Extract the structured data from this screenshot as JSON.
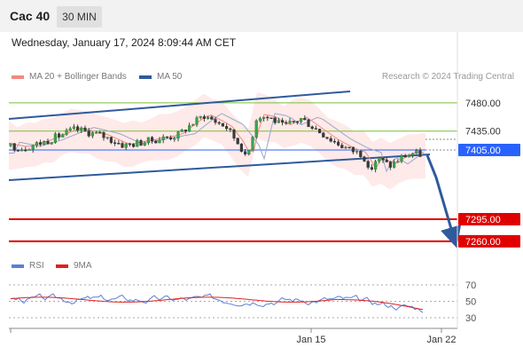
{
  "header": {
    "instrument": "Cac 40",
    "timeframe": "30 MIN"
  },
  "subtitle": "Wednesday, January 17, 2024 8:09:44 AM CET",
  "legend": {
    "bollinger": {
      "label": "MA 20 + Bollinger Bands",
      "color": "#f08a82"
    },
    "ma50": {
      "label": "MA 50",
      "color": "#2f5a9c"
    },
    "credit": "Research © 2024 Trading Central"
  },
  "rsi_legend": {
    "rsi": {
      "label": "RSI",
      "color": "#5b7fd6"
    },
    "ma9": {
      "label": "9MA",
      "color": "#e02020"
    }
  },
  "chart_data": {
    "type": "candlestick",
    "price_axis": {
      "ticks": [
        7480,
        7435,
        7405,
        7295,
        7260
      ],
      "labels": [
        "7480.00",
        "7435.00",
        "7405.00",
        "7295.00",
        "7260.00"
      ]
    },
    "current_price": {
      "value": 7405,
      "label": "7405.00",
      "color": "#2962ff"
    },
    "resistance_levels": [
      {
        "value": 7480,
        "label": "7480.00",
        "color": "#7cbd3a"
      },
      {
        "value": 7435,
        "label": "7435.00",
        "color": "#7cbd3a"
      }
    ],
    "support_levels": [
      {
        "value": 7295,
        "label": "7295.00",
        "color": "#e00000"
      },
      {
        "value": 7260,
        "label": "7260.00",
        "color": "#e00000"
      }
    ],
    "x_labels": [
      "Jan 15",
      "Jan 22"
    ],
    "forecast": {
      "from": 7405,
      "to": 7260,
      "direction": "down"
    },
    "rsi": {
      "ticks": [
        70,
        50,
        30
      ],
      "labels": [
        "70",
        "50",
        "30"
      ]
    }
  }
}
